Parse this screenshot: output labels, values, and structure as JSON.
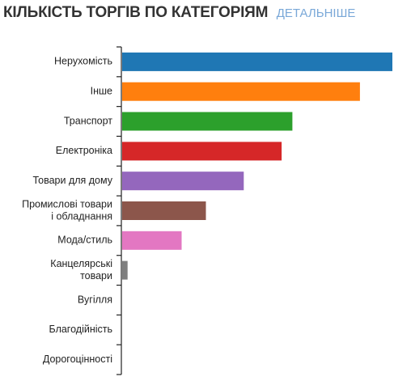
{
  "header": {
    "title": "КІЛЬКІСТЬ ТОРГІВ ПО КАТЕГОРІЯМ",
    "more_link": "ДЕТАЛЬНІШЕ"
  },
  "chart_data": {
    "type": "bar",
    "orientation": "horizontal",
    "title": "КІЛЬКІСТЬ ТОРГІВ ПО КАТЕГОРІЯМ",
    "xlabel": "",
    "ylabel": "",
    "grid": false,
    "xlim": [
      0,
      100
    ],
    "categories": [
      [
        "Нерухомість"
      ],
      [
        "Інше"
      ],
      [
        "Транспорт"
      ],
      [
        "Електроніка"
      ],
      [
        "Товари для дому"
      ],
      [
        "Промислові товари",
        "і обладнання"
      ],
      [
        "Мода/стиль"
      ],
      [
        "Канцелярські",
        "товари"
      ],
      [
        "Вугілля"
      ],
      [
        "Благодійність"
      ],
      [
        "Дорогоцінності"
      ]
    ],
    "values": [
      100,
      88,
      63,
      59,
      45,
      31,
      22,
      2,
      0,
      0,
      0
    ],
    "colors": [
      "#1f77b4",
      "#ff7f0e",
      "#2ca02c",
      "#d62728",
      "#9467bd",
      "#8c564b",
      "#e377c2",
      "#7f7f7f",
      "#bcbd22",
      "#17becf",
      "#1f77b4"
    ]
  }
}
